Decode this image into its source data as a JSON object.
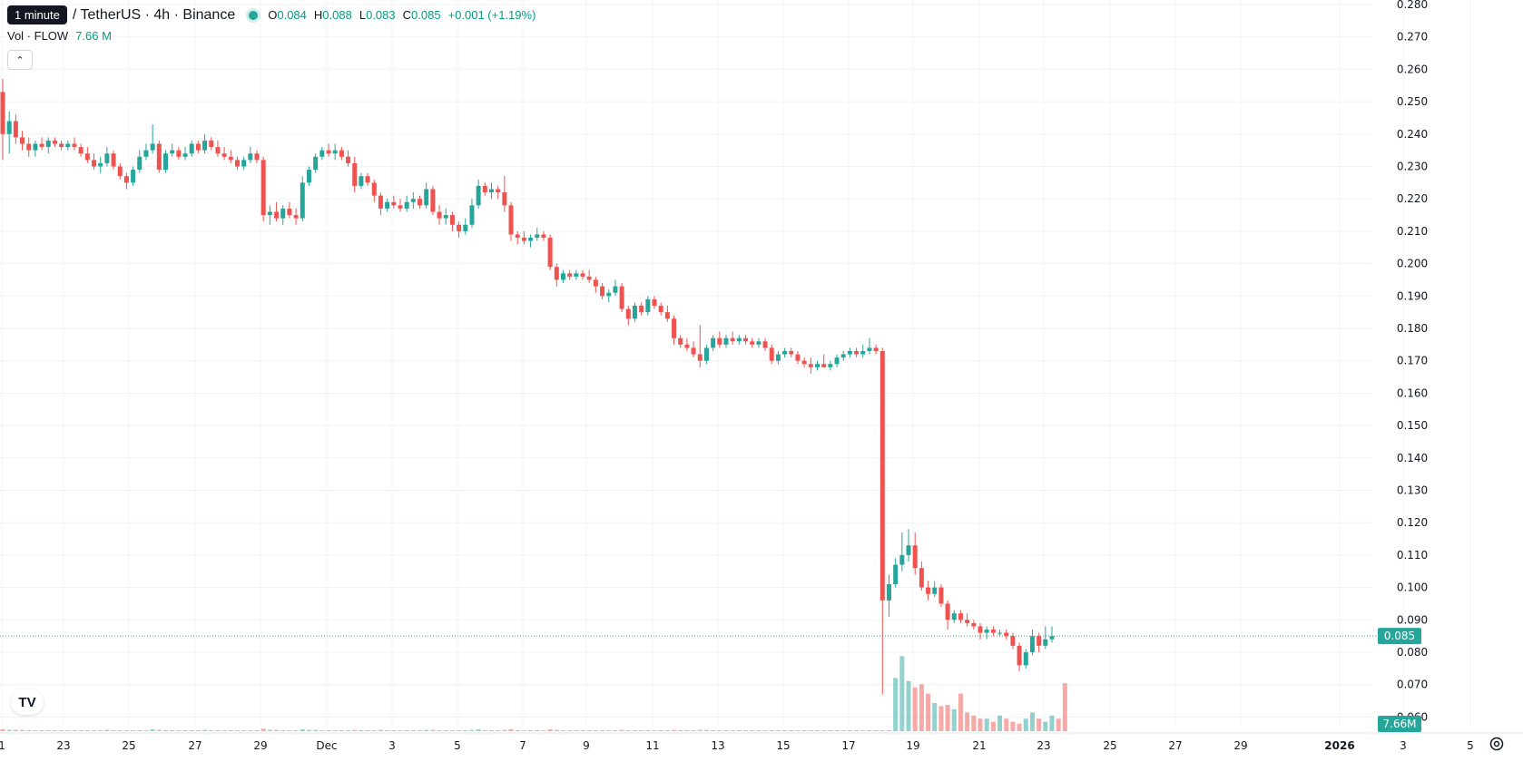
{
  "legend": {
    "tooltip": "1 minute",
    "symbol": "/ TetherUS · 4h · Binance",
    "open_label": "O",
    "open": "0.084",
    "high_label": "H",
    "high": "0.088",
    "low_label": "L",
    "low": "0.083",
    "close_label": "C",
    "close": "0.085",
    "change": "+0.001 (+1.19%)"
  },
  "volume_legend": {
    "label": "Vol · FLOW",
    "value": "7.66 M"
  },
  "colors": {
    "up": "#26a69a",
    "down": "#ef5350",
    "up_text": "#089981",
    "grid": "#f0f3fa"
  },
  "icons": {
    "collapse": "chevron-up-icon",
    "logo": "tradingview-logo-icon",
    "settings": "gear-icon"
  },
  "chart_data": {
    "type": "candlestick",
    "symbol": "/ TetherUS",
    "interval": "4h",
    "exchange": "Binance",
    "y_axis": {
      "min": 0.06,
      "max": 0.28,
      "step": 0.01,
      "side": "right",
      "ticks": [
        "0.280",
        "0.270",
        "0.260",
        "0.250",
        "0.240",
        "0.230",
        "0.220",
        "0.210",
        "0.200",
        "0.190",
        "0.180",
        "0.170",
        "0.160",
        "0.150",
        "0.140",
        "0.130",
        "0.120",
        "0.110",
        "0.100",
        "0.090",
        "0.080",
        "0.070",
        "0.060"
      ]
    },
    "x_axis": {
      "labels": [
        "1",
        "23",
        "25",
        "27",
        "29",
        "Dec",
        "3",
        "5",
        "7",
        "9",
        "11",
        "13",
        "15",
        "17",
        "19",
        "21",
        "23",
        "25",
        "27",
        "29",
        "2026",
        "3",
        "5"
      ]
    },
    "grid": true,
    "last_price": "0.085",
    "last_volume": "7.66M",
    "candles": [
      [
        0.253,
        0.257,
        0.232,
        0.24
      ],
      [
        0.24,
        0.247,
        0.234,
        0.244
      ],
      [
        0.244,
        0.246,
        0.237,
        0.239
      ],
      [
        0.239,
        0.241,
        0.235,
        0.237
      ],
      [
        0.237,
        0.239,
        0.233,
        0.235
      ],
      [
        0.235,
        0.238,
        0.233,
        0.237
      ],
      [
        0.237,
        0.239,
        0.235,
        0.236
      ],
      [
        0.236,
        0.239,
        0.234,
        0.238
      ],
      [
        0.238,
        0.239,
        0.236,
        0.237
      ],
      [
        0.237,
        0.238,
        0.235,
        0.236
      ],
      [
        0.236,
        0.238,
        0.235,
        0.237
      ],
      [
        0.237,
        0.239,
        0.235,
        0.236
      ],
      [
        0.236,
        0.237,
        0.233,
        0.234
      ],
      [
        0.234,
        0.236,
        0.231,
        0.232
      ],
      [
        0.232,
        0.234,
        0.229,
        0.23
      ],
      [
        0.23,
        0.233,
        0.228,
        0.231
      ],
      [
        0.231,
        0.236,
        0.23,
        0.234
      ],
      [
        0.234,
        0.235,
        0.229,
        0.23
      ],
      [
        0.23,
        0.231,
        0.226,
        0.227
      ],
      [
        0.227,
        0.228,
        0.223,
        0.225
      ],
      [
        0.225,
        0.23,
        0.224,
        0.229
      ],
      [
        0.229,
        0.235,
        0.228,
        0.233
      ],
      [
        0.233,
        0.237,
        0.232,
        0.235
      ],
      [
        0.235,
        0.243,
        0.234,
        0.237
      ],
      [
        0.237,
        0.238,
        0.228,
        0.229
      ],
      [
        0.229,
        0.235,
        0.228,
        0.234
      ],
      [
        0.234,
        0.237,
        0.233,
        0.235
      ],
      [
        0.235,
        0.236,
        0.232,
        0.233
      ],
      [
        0.233,
        0.236,
        0.232,
        0.234
      ],
      [
        0.234,
        0.238,
        0.233,
        0.237
      ],
      [
        0.237,
        0.238,
        0.234,
        0.235
      ],
      [
        0.235,
        0.24,
        0.234,
        0.238
      ],
      [
        0.238,
        0.239,
        0.235,
        0.236
      ],
      [
        0.236,
        0.238,
        0.233,
        0.234
      ],
      [
        0.234,
        0.236,
        0.232,
        0.233
      ],
      [
        0.233,
        0.235,
        0.231,
        0.232
      ],
      [
        0.232,
        0.233,
        0.229,
        0.23
      ],
      [
        0.23,
        0.233,
        0.229,
        0.232
      ],
      [
        0.232,
        0.236,
        0.231,
        0.234
      ],
      [
        0.234,
        0.235,
        0.231,
        0.232
      ],
      [
        0.232,
        0.233,
        0.213,
        0.215
      ],
      [
        0.215,
        0.218,
        0.212,
        0.216
      ],
      [
        0.216,
        0.219,
        0.213,
        0.214
      ],
      [
        0.214,
        0.218,
        0.212,
        0.217
      ],
      [
        0.217,
        0.219,
        0.214,
        0.215
      ],
      [
        0.215,
        0.217,
        0.212,
        0.214
      ],
      [
        0.214,
        0.227,
        0.213,
        0.225
      ],
      [
        0.225,
        0.23,
        0.224,
        0.229
      ],
      [
        0.229,
        0.234,
        0.228,
        0.233
      ],
      [
        0.233,
        0.236,
        0.232,
        0.235
      ],
      [
        0.235,
        0.237,
        0.233,
        0.234
      ],
      [
        0.234,
        0.237,
        0.232,
        0.235
      ],
      [
        0.235,
        0.236,
        0.232,
        0.233
      ],
      [
        0.233,
        0.235,
        0.23,
        0.231
      ],
      [
        0.231,
        0.233,
        0.222,
        0.224
      ],
      [
        0.224,
        0.228,
        0.223,
        0.227
      ],
      [
        0.227,
        0.228,
        0.224,
        0.225
      ],
      [
        0.225,
        0.226,
        0.219,
        0.221
      ],
      [
        0.221,
        0.222,
        0.215,
        0.217
      ],
      [
        0.217,
        0.22,
        0.216,
        0.219
      ],
      [
        0.219,
        0.221,
        0.217,
        0.218
      ],
      [
        0.218,
        0.22,
        0.216,
        0.217
      ],
      [
        0.217,
        0.221,
        0.216,
        0.219
      ],
      [
        0.219,
        0.222,
        0.217,
        0.22
      ],
      [
        0.22,
        0.221,
        0.217,
        0.218
      ],
      [
        0.218,
        0.225,
        0.217,
        0.223
      ],
      [
        0.223,
        0.224,
        0.215,
        0.216
      ],
      [
        0.216,
        0.218,
        0.212,
        0.214
      ],
      [
        0.214,
        0.217,
        0.212,
        0.215
      ],
      [
        0.215,
        0.216,
        0.21,
        0.212
      ],
      [
        0.212,
        0.213,
        0.208,
        0.21
      ],
      [
        0.21,
        0.214,
        0.209,
        0.212
      ],
      [
        0.212,
        0.22,
        0.211,
        0.218
      ],
      [
        0.218,
        0.226,
        0.217,
        0.224
      ],
      [
        0.224,
        0.225,
        0.221,
        0.222
      ],
      [
        0.222,
        0.225,
        0.22,
        0.223
      ],
      [
        0.223,
        0.224,
        0.22,
        0.222
      ],
      [
        0.222,
        0.227,
        0.216,
        0.218
      ],
      [
        0.218,
        0.219,
        0.207,
        0.209
      ],
      [
        0.209,
        0.21,
        0.206,
        0.208
      ],
      [
        0.208,
        0.21,
        0.206,
        0.207
      ],
      [
        0.207,
        0.209,
        0.205,
        0.208
      ],
      [
        0.208,
        0.211,
        0.207,
        0.209
      ],
      [
        0.209,
        0.21,
        0.207,
        0.208
      ],
      [
        0.208,
        0.209,
        0.198,
        0.199
      ],
      [
        0.199,
        0.2,
        0.193,
        0.195
      ],
      [
        0.195,
        0.198,
        0.194,
        0.197
      ],
      [
        0.197,
        0.198,
        0.195,
        0.196
      ],
      [
        0.196,
        0.198,
        0.195,
        0.197
      ],
      [
        0.197,
        0.198,
        0.195,
        0.196
      ],
      [
        0.196,
        0.198,
        0.194,
        0.195
      ],
      [
        0.195,
        0.196,
        0.191,
        0.193
      ],
      [
        0.193,
        0.194,
        0.189,
        0.19
      ],
      [
        0.19,
        0.192,
        0.188,
        0.191
      ],
      [
        0.191,
        0.195,
        0.19,
        0.193
      ],
      [
        0.193,
        0.194,
        0.185,
        0.186
      ],
      [
        0.186,
        0.187,
        0.181,
        0.183
      ],
      [
        0.183,
        0.188,
        0.182,
        0.187
      ],
      [
        0.187,
        0.188,
        0.184,
        0.185
      ],
      [
        0.185,
        0.19,
        0.184,
        0.189
      ],
      [
        0.189,
        0.19,
        0.186,
        0.187
      ],
      [
        0.187,
        0.188,
        0.184,
        0.185
      ],
      [
        0.185,
        0.187,
        0.182,
        0.183
      ],
      [
        0.183,
        0.184,
        0.175,
        0.177
      ],
      [
        0.177,
        0.178,
        0.174,
        0.175
      ],
      [
        0.175,
        0.177,
        0.173,
        0.174
      ],
      [
        0.174,
        0.176,
        0.171,
        0.172
      ],
      [
        0.172,
        0.181,
        0.168,
        0.17
      ],
      [
        0.17,
        0.175,
        0.169,
        0.174
      ],
      [
        0.174,
        0.178,
        0.173,
        0.177
      ],
      [
        0.177,
        0.179,
        0.174,
        0.175
      ],
      [
        0.175,
        0.178,
        0.174,
        0.177
      ],
      [
        0.177,
        0.179,
        0.175,
        0.176
      ],
      [
        0.176,
        0.178,
        0.175,
        0.177
      ],
      [
        0.177,
        0.178,
        0.175,
        0.176
      ],
      [
        0.176,
        0.177,
        0.174,
        0.175
      ],
      [
        0.175,
        0.177,
        0.174,
        0.176
      ],
      [
        0.176,
        0.177,
        0.173,
        0.174
      ],
      [
        0.174,
        0.175,
        0.169,
        0.17
      ],
      [
        0.17,
        0.173,
        0.169,
        0.172
      ],
      [
        0.172,
        0.174,
        0.171,
        0.173
      ],
      [
        0.173,
        0.174,
        0.171,
        0.172
      ],
      [
        0.172,
        0.173,
        0.169,
        0.17
      ],
      [
        0.17,
        0.171,
        0.168,
        0.169
      ],
      [
        0.169,
        0.171,
        0.166,
        0.168
      ],
      [
        0.168,
        0.17,
        0.167,
        0.169
      ],
      [
        0.169,
        0.172,
        0.168,
        0.168
      ],
      [
        0.168,
        0.17,
        0.167,
        0.169
      ],
      [
        0.169,
        0.172,
        0.168,
        0.171
      ],
      [
        0.171,
        0.173,
        0.17,
        0.172
      ],
      [
        0.172,
        0.174,
        0.171,
        0.173
      ],
      [
        0.173,
        0.174,
        0.171,
        0.172
      ],
      [
        0.172,
        0.175,
        0.171,
        0.173
      ],
      [
        0.173,
        0.177,
        0.172,
        0.174
      ],
      [
        0.174,
        0.175,
        0.172,
        0.173
      ],
      [
        0.173,
        0.174,
        0.067,
        0.096
      ],
      [
        0.096,
        0.104,
        0.091,
        0.101
      ],
      [
        0.101,
        0.109,
        0.1,
        0.107
      ],
      [
        0.107,
        0.117,
        0.105,
        0.11
      ],
      [
        0.11,
        0.118,
        0.108,
        0.113
      ],
      [
        0.113,
        0.117,
        0.104,
        0.106
      ],
      [
        0.106,
        0.108,
        0.099,
        0.1
      ],
      [
        0.1,
        0.102,
        0.096,
        0.098
      ],
      [
        0.098,
        0.102,
        0.097,
        0.1
      ],
      [
        0.1,
        0.101,
        0.094,
        0.095
      ],
      [
        0.095,
        0.096,
        0.087,
        0.09
      ],
      [
        0.09,
        0.093,
        0.089,
        0.092
      ],
      [
        0.092,
        0.093,
        0.089,
        0.09
      ],
      [
        0.09,
        0.092,
        0.088,
        0.089
      ],
      [
        0.089,
        0.09,
        0.087,
        0.088
      ],
      [
        0.088,
        0.089,
        0.084,
        0.086
      ],
      [
        0.086,
        0.088,
        0.084,
        0.087
      ],
      [
        0.087,
        0.088,
        0.085,
        0.086
      ],
      [
        0.086,
        0.087,
        0.085,
        0.086
      ],
      [
        0.086,
        0.087,
        0.084,
        0.085
      ],
      [
        0.085,
        0.086,
        0.081,
        0.082
      ],
      [
        0.082,
        0.083,
        0.074,
        0.076
      ],
      [
        0.076,
        0.081,
        0.075,
        0.08
      ],
      [
        0.08,
        0.087,
        0.079,
        0.085
      ],
      [
        0.085,
        0.086,
        0.08,
        0.082
      ],
      [
        0.082,
        0.088,
        0.081,
        0.084
      ],
      [
        0.084,
        0.088,
        0.083,
        0.085
      ]
    ],
    "volume": [
      0.3,
      0.2,
      0.2,
      0.2,
      0.1,
      0.1,
      0.1,
      0.1,
      0.1,
      0.1,
      0.1,
      0.1,
      0.1,
      0.1,
      0.1,
      0.1,
      0.2,
      0.1,
      0.1,
      0.1,
      0.1,
      0.1,
      0.1,
      0.3,
      0.2,
      0.1,
      0.1,
      0.1,
      0.1,
      0.1,
      0.1,
      0.2,
      0.1,
      0.1,
      0.1,
      0.1,
      0.1,
      0.1,
      0.1,
      0.1,
      0.4,
      0.2,
      0.2,
      0.1,
      0.1,
      0.1,
      0.3,
      0.2,
      0.2,
      0.1,
      0.1,
      0.1,
      0.1,
      0.1,
      0.2,
      0.1,
      0.1,
      0.1,
      0.2,
      0.1,
      0.1,
      0.1,
      0.1,
      0.1,
      0.1,
      0.2,
      0.2,
      0.1,
      0.1,
      0.1,
      0.1,
      0.1,
      0.2,
      0.3,
      0.1,
      0.1,
      0.1,
      0.2,
      0.3,
      0.1,
      0.1,
      0.1,
      0.1,
      0.1,
      0.3,
      0.2,
      0.1,
      0.1,
      0.1,
      0.1,
      0.1,
      0.1,
      0.1,
      0.1,
      0.1,
      0.2,
      0.1,
      0.1,
      0.1,
      0.1,
      0.1,
      0.1,
      0.1,
      0.2,
      0.1,
      0.1,
      0.1,
      0.2,
      0.2,
      0.1,
      0.1,
      0.1,
      0.1,
      0.1,
      0.1,
      0.1,
      0.1,
      0.1,
      0.1,
      0.1,
      0.1,
      0.1,
      0.1,
      0.1,
      0.1,
      0.1,
      0.1,
      0.1,
      0.1,
      0.1,
      0.1,
      0.1,
      0.1,
      0.1,
      0.1,
      0.1,
      0.1,
      8.5,
      12.0,
      8.0,
      7.0,
      7.5,
      6.0,
      4.5,
      4.0,
      4.2,
      3.5,
      6.0,
      3.0,
      2.5,
      2.0,
      2.0,
      1.5,
      2.5,
      2.0,
      1.5,
      1.2,
      2.0,
      3.0,
      2.0,
      1.5,
      2.5,
      2.0,
      7.66
    ]
  }
}
